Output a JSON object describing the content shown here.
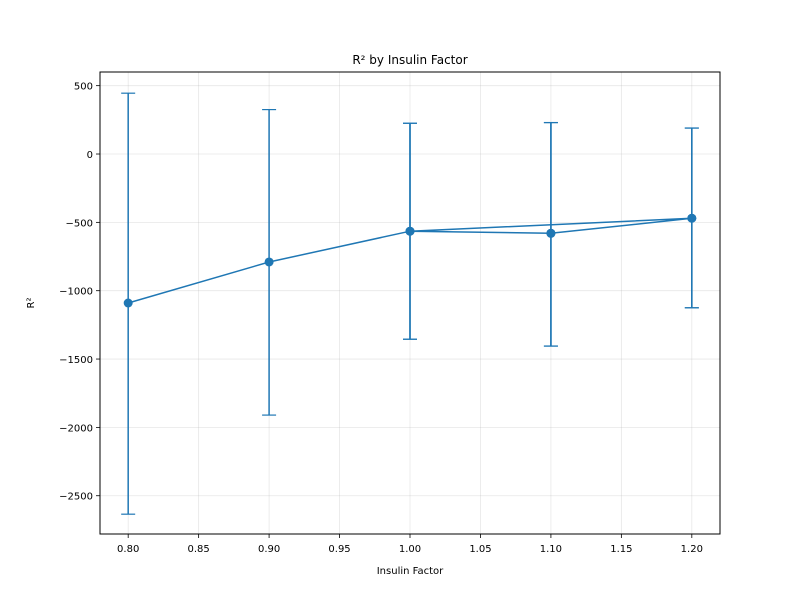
{
  "chart_data": {
    "type": "line",
    "title": "R² by Insulin Factor",
    "xlabel": "Insulin Factor",
    "ylabel": "R²",
    "xlim": [
      0.78,
      1.22
    ],
    "ylim": [
      -2780,
      600
    ],
    "x_ticks": [
      0.8,
      0.85,
      0.9,
      0.95,
      1.0,
      1.05,
      1.1,
      1.15,
      1.2
    ],
    "x_tick_labels": [
      "0.80",
      "0.85",
      "0.90",
      "0.95",
      "1.00",
      "1.05",
      "1.10",
      "1.15",
      "1.20"
    ],
    "y_ticks": [
      500,
      0,
      -500,
      -1000,
      -1500,
      -2000,
      -2500
    ],
    "y_tick_labels": [
      "500",
      "0",
      "−500",
      "−1000",
      "−1500",
      "−2000",
      "−2500"
    ],
    "grid": true,
    "series": [
      {
        "color": "#1f77b4",
        "points": [
          {
            "x": 0.8,
            "y": -1090,
            "err_low": -2635,
            "err_high": 445
          },
          {
            "x": 0.9,
            "y": -790,
            "err_low": -1910,
            "err_high": 325
          },
          {
            "x": 1.0,
            "y": -565,
            "err_low": -1355,
            "err_high": 225
          },
          {
            "x": 1.1,
            "y": -580,
            "err_low": -1405,
            "err_high": 230
          },
          {
            "x": 1.2,
            "y": -470,
            "err_low": -1125,
            "err_high": 190
          },
          {
            "x": 1.0,
            "y": -565,
            "err_low": -1355,
            "err_high": 225
          },
          {
            "x": 1.1,
            "y": -580,
            "err_low": -1405,
            "err_high": 230
          },
          {
            "x": 1.2,
            "y": -470,
            "err_low": -1125,
            "err_high": 190
          }
        ]
      }
    ]
  }
}
